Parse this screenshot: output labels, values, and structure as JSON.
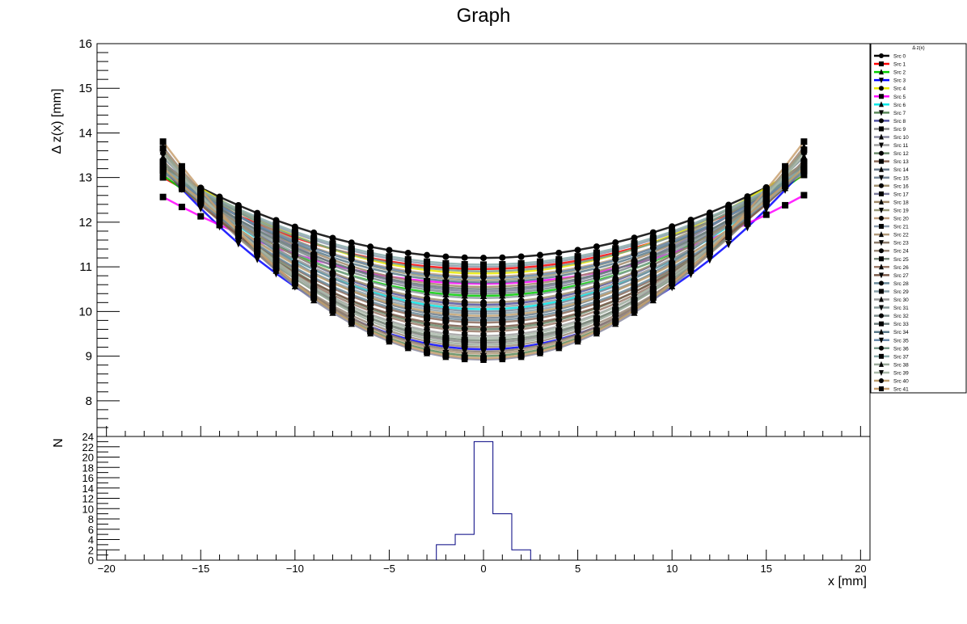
{
  "chart_data": {
    "type": "line",
    "title": "Graph",
    "x_label": "x [mm]",
    "y_label": "Δ z(x) [mm]",
    "hist_y_label": "N",
    "xlim": [
      -20.5,
      20.5
    ],
    "ylim": [
      7.2,
      16.0
    ],
    "hist_ylim": [
      0,
      24
    ],
    "x_ticks": [
      -20,
      -15,
      -10,
      -5,
      0,
      5,
      10,
      15,
      20
    ],
    "x_tick_labels": [
      "−20",
      "−15",
      "−10",
      "−5",
      "0",
      "5",
      "10",
      "15",
      "20"
    ],
    "y_ticks": [
      8,
      9,
      10,
      11,
      12,
      13,
      14,
      15,
      16
    ],
    "y_tick_labels": [
      "8",
      "9",
      "10",
      "11",
      "12",
      "13",
      "14",
      "15",
      "16"
    ],
    "hist_y_ticks": [
      0,
      2,
      4,
      6,
      8,
      10,
      12,
      14,
      16,
      18,
      20,
      22,
      24
    ],
    "hist_y_tick_labels": [
      "0",
      "2",
      "4",
      "6",
      "8",
      "10",
      "12",
      "14",
      "16",
      "18",
      "20",
      "22",
      "24"
    ],
    "x_points": [
      -17,
      -16,
      -15,
      -14,
      -13,
      -12,
      -11,
      -10,
      -9,
      -8,
      -7,
      -6,
      -5,
      -4,
      -3,
      -2,
      -1,
      0,
      1,
      2,
      3,
      4,
      5,
      6,
      7,
      8,
      9,
      10,
      11,
      12,
      13,
      14,
      15,
      16,
      17
    ],
    "legend": {
      "title": "Δ z(x)",
      "placement": "right",
      "entries": [
        "Src 0",
        "Src 1",
        "Src 2",
        "Src 3",
        "Src 4",
        "Src 5",
        "Src 6",
        "Src 7",
        "Src 8",
        "Src 9",
        "Src 10",
        "Src 11",
        "Src 12",
        "Src 13",
        "Src 14",
        "Src 15",
        "Src 16",
        "Src 17",
        "Src 18",
        "Src 19",
        "Src 20",
        "Src 21",
        "Src 22",
        "Src 23",
        "Src 24",
        "Src 25",
        "Src 26",
        "Src 27",
        "Src 28",
        "Src 29",
        "Src 30",
        "Src 31",
        "Src 32",
        "Src 33",
        "Src 34",
        "Src 35",
        "Src 36",
        "Src 37",
        "Src 38",
        "Src 39",
        "Src 40",
        "Src 41"
      ]
    },
    "series_colors": [
      "#000000",
      "#ff0000",
      "#00cc00",
      "#0000ff",
      "#e8e800",
      "#ff00ff",
      "#00e8e8",
      "#5a8a5a",
      "#5050a0",
      "#8a8a8a",
      "#8a8aa0",
      "#a0a0a0",
      "#6a8a6a",
      "#8a6a5a",
      "#6a7a8a",
      "#7a8a9a",
      "#a09070",
      "#7a7a9a",
      "#a08a6a",
      "#9a9a7a",
      "#c0a080",
      "#8a9aaa",
      "#b09a7a",
      "#8a7a6a",
      "#9a8a7a",
      "#7a8a7a",
      "#9a7a6a",
      "#7a5a4a",
      "#6a8a9a",
      "#8aa0aa",
      "#9a9a9a",
      "#8a9a9a",
      "#7a8a8a",
      "#6a7a7a",
      "#5a7a8a",
      "#6a8aaa",
      "#7a9a8a",
      "#8aaaaa",
      "#9aaa9a",
      "#aabaaa",
      "#c0a070",
      "#c8a070"
    ],
    "series": [
      {
        "name": "Src 0",
        "a": 0.007,
        "b": 0.0003,
        "c": 11.2
      },
      {
        "name": "Src 1",
        "a": 0.0072,
        "b": 0.0016,
        "c": 10.95
      },
      {
        "name": "Src 2",
        "a": 0.0094,
        "b": 0.0008,
        "c": 10.35
      },
      {
        "name": "Src 3",
        "a": 0.014,
        "b": -0.0006,
        "c": 9.15
      },
      {
        "name": "Src 4",
        "a": 0.0085,
        "b": 0.0006,
        "c": 10.85
      },
      {
        "name": "Src 5",
        "a": 0.0068,
        "b": 0.0012,
        "c": 10.62
      },
      {
        "name": "Src 6",
        "a": 0.011,
        "b": 0.0,
        "c": 10.05
      },
      {
        "name": "Src 7",
        "a": 0.016,
        "b": 0.0,
        "c": 9.0
      },
      {
        "name": "Src 8",
        "a": 0.011,
        "b": 0.0,
        "c": 10.15
      },
      {
        "name": "Src 9",
        "a": 0.015,
        "b": -0.001,
        "c": 9.3
      },
      {
        "name": "Src 10",
        "a": 0.0165,
        "b": 0.0,
        "c": 8.92
      },
      {
        "name": "Src 11",
        "a": 0.0135,
        "b": 0.0,
        "c": 9.45
      },
      {
        "name": "Src 12",
        "a": 0.013,
        "b": 0.0008,
        "c": 9.6
      },
      {
        "name": "Src 13",
        "a": 0.012,
        "b": -0.0004,
        "c": 9.75
      },
      {
        "name": "Src 14",
        "a": 0.0125,
        "b": 0.0004,
        "c": 9.85
      },
      {
        "name": "Src 15",
        "a": 0.0116,
        "b": 0.0,
        "c": 10.0
      },
      {
        "name": "Src 16",
        "a": 0.0105,
        "b": 0.0002,
        "c": 10.2
      },
      {
        "name": "Src 17",
        "a": 0.01,
        "b": 0.0,
        "c": 10.45
      },
      {
        "name": "Src 18",
        "a": 0.0095,
        "b": 0.0004,
        "c": 10.55
      },
      {
        "name": "Src 19",
        "a": 0.009,
        "b": 0.0,
        "c": 10.7
      },
      {
        "name": "Src 20",
        "a": 0.008,
        "b": 0.0,
        "c": 10.78
      },
      {
        "name": "Src 21",
        "a": 0.0075,
        "b": 0.0005,
        "c": 11.0
      },
      {
        "name": "Src 22",
        "a": 0.016,
        "b": 0.0,
        "c": 9.05
      },
      {
        "name": "Src 23",
        "a": 0.0155,
        "b": 0.0006,
        "c": 9.1
      },
      {
        "name": "Src 24",
        "a": 0.0145,
        "b": 0.0,
        "c": 9.2
      },
      {
        "name": "Src 25",
        "a": 0.0138,
        "b": -0.0006,
        "c": 9.35
      },
      {
        "name": "Src 26",
        "a": 0.0128,
        "b": 0.0,
        "c": 9.55
      },
      {
        "name": "Src 27",
        "a": 0.0122,
        "b": 0.0005,
        "c": 9.65
      },
      {
        "name": "Src 28",
        "a": 0.0118,
        "b": 0.0,
        "c": 9.8
      },
      {
        "name": "Src 29",
        "a": 0.0112,
        "b": -0.0004,
        "c": 9.95
      },
      {
        "name": "Src 30",
        "a": 0.0108,
        "b": 0.0,
        "c": 10.1
      },
      {
        "name": "Src 31",
        "a": 0.0102,
        "b": 0.0004,
        "c": 10.3
      },
      {
        "name": "Src 32",
        "a": 0.0098,
        "b": 0.0,
        "c": 10.4
      },
      {
        "name": "Src 33",
        "a": 0.0092,
        "b": -0.0003,
        "c": 10.5
      },
      {
        "name": "Src 34",
        "a": 0.0088,
        "b": 0.0003,
        "c": 10.65
      },
      {
        "name": "Src 35",
        "a": 0.0082,
        "b": 0.0,
        "c": 10.75
      },
      {
        "name": "Src 36",
        "a": 0.0078,
        "b": -0.0002,
        "c": 10.9
      },
      {
        "name": "Src 37",
        "a": 0.0074,
        "b": 0.0002,
        "c": 11.05
      },
      {
        "name": "Src 38",
        "a": 0.015,
        "b": 0.0,
        "c": 9.25
      },
      {
        "name": "Src 39",
        "a": 0.0142,
        "b": 0.0003,
        "c": 9.4
      },
      {
        "name": "Src 40",
        "a": 0.0115,
        "b": 0.0,
        "c": 9.9
      },
      {
        "name": "Src 41",
        "a": 0.0168,
        "b": 0.0,
        "c": 8.95
      }
    ],
    "histogram": {
      "bin_width": 1.0,
      "bins": [
        {
          "x_low": -2.5,
          "x_high": -1.5,
          "count": 3
        },
        {
          "x_low": -1.5,
          "x_high": -0.5,
          "count": 5
        },
        {
          "x_low": -0.5,
          "x_high": 0.5,
          "count": 23
        },
        {
          "x_low": 0.5,
          "x_high": 1.5,
          "count": 9
        },
        {
          "x_low": 1.5,
          "x_high": 2.5,
          "count": 2
        }
      ]
    }
  }
}
